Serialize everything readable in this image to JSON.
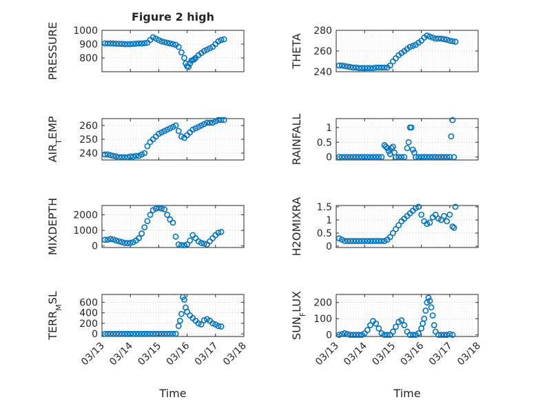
{
  "figure_title": "Figure 2 high",
  "marker_color": "#0072BD",
  "chart_data": [
    {
      "type": "scatter",
      "ylabel": "PRESSURE",
      "title": "Figure 2 high",
      "xlim": [
        0,
        5
      ],
      "ylim": [
        700,
        1000
      ],
      "yticks": [
        800,
        900,
        1000
      ],
      "x": [
        0.1,
        0.2,
        0.3,
        0.4,
        0.5,
        0.6,
        0.7,
        0.8,
        0.9,
        1.0,
        1.1,
        1.2,
        1.3,
        1.4,
        1.5,
        1.6,
        1.7,
        1.8,
        1.9,
        2.0,
        2.1,
        2.2,
        2.3,
        2.4,
        2.5,
        2.6,
        2.7,
        2.8,
        2.9,
        2.95,
        3.0,
        3.05,
        3.1,
        3.15,
        3.2,
        3.25,
        3.3,
        3.4,
        3.5,
        3.6,
        3.7,
        3.8,
        3.9,
        4.0,
        4.1,
        4.2,
        4.3
      ],
      "y": [
        905,
        905,
        905,
        904,
        903,
        902,
        902,
        900,
        900,
        900,
        902,
        903,
        905,
        905,
        907,
        910,
        930,
        950,
        940,
        930,
        920,
        915,
        910,
        905,
        900,
        895,
        880,
        840,
        800,
        760,
        740,
        735,
        760,
        780,
        785,
        790,
        800,
        820,
        835,
        850,
        860,
        870,
        880,
        900,
        920,
        930,
        935
      ]
    },
    {
      "type": "scatter",
      "ylabel": "THETA",
      "xlim": [
        0,
        5
      ],
      "ylim": [
        240,
        280
      ],
      "yticks": [
        240,
        260,
        280
      ],
      "x": [
        0.1,
        0.2,
        0.3,
        0.4,
        0.5,
        0.6,
        0.7,
        0.8,
        0.9,
        1.0,
        1.1,
        1.2,
        1.3,
        1.4,
        1.5,
        1.6,
        1.7,
        1.8,
        1.9,
        2.0,
        2.1,
        2.2,
        2.3,
        2.4,
        2.5,
        2.6,
        2.7,
        2.8,
        2.9,
        3.0,
        3.1,
        3.2,
        3.3,
        3.4,
        3.5,
        3.6,
        3.7,
        3.8,
        3.9,
        4.0,
        4.1,
        4.2
      ],
      "y": [
        246,
        246,
        245.5,
        245,
        244.5,
        244,
        244,
        243.5,
        243.5,
        243.5,
        243.5,
        243.5,
        243.5,
        244,
        244,
        244,
        244,
        244,
        246,
        250,
        253,
        256,
        258,
        260,
        262,
        264,
        265,
        266,
        268,
        270,
        273,
        275,
        274,
        273,
        272,
        272,
        272,
        271.5,
        271,
        270,
        269.5,
        269
      ]
    },
    {
      "type": "scatter",
      "ylabel": "AIR_TEMP",
      "xlim": [
        0,
        5
      ],
      "ylim": [
        235,
        265
      ],
      "yticks": [
        240,
        250,
        260
      ],
      "x": [
        0.1,
        0.2,
        0.3,
        0.4,
        0.5,
        0.6,
        0.7,
        0.8,
        0.9,
        1.0,
        1.1,
        1.2,
        1.3,
        1.4,
        1.5,
        1.6,
        1.7,
        1.8,
        1.9,
        2.0,
        2.1,
        2.2,
        2.3,
        2.4,
        2.5,
        2.6,
        2.7,
        2.8,
        2.9,
        3.0,
        3.1,
        3.2,
        3.3,
        3.4,
        3.5,
        3.6,
        3.7,
        3.8,
        3.9,
        4.0,
        4.1,
        4.2,
        4.3
      ],
      "y": [
        239,
        239,
        238.5,
        238,
        237.5,
        237,
        237,
        237,
        237,
        237.5,
        237.5,
        238,
        238,
        239,
        240,
        245,
        248,
        250,
        252,
        254,
        255,
        256,
        257,
        258,
        259,
        260,
        256,
        252,
        251,
        253,
        255,
        257,
        258,
        259,
        260,
        261,
        262,
        262,
        262,
        263,
        264,
        264,
        264
      ]
    },
    {
      "type": "scatter",
      "ylabel": "RAINFALL",
      "xlim": [
        0,
        5
      ],
      "ylim": [
        -0.1,
        1.3
      ],
      "yticks": [
        0,
        0.5,
        1
      ],
      "x": [
        0.1,
        0.2,
        0.3,
        0.4,
        0.5,
        0.6,
        0.7,
        0.8,
        0.9,
        1.0,
        1.1,
        1.2,
        1.3,
        1.4,
        1.5,
        1.6,
        1.7,
        1.75,
        1.8,
        1.85,
        1.9,
        1.95,
        2.0,
        2.05,
        2.1,
        2.2,
        2.3,
        2.4,
        2.5,
        2.55,
        2.6,
        2.65,
        2.7,
        2.75,
        2.8,
        2.9,
        3.0,
        3.1,
        3.2,
        3.3,
        3.4,
        3.5,
        3.6,
        3.7,
        3.8,
        3.9,
        4.0,
        4.05,
        4.1,
        4.15
      ],
      "y": [
        0,
        0,
        0,
        0,
        0,
        0,
        0,
        0,
        0,
        0,
        0,
        0,
        0,
        0,
        0,
        0,
        0.4,
        0.35,
        0.3,
        0.2,
        0.1,
        0.3,
        0.35,
        0.15,
        0,
        0,
        0,
        0,
        0.3,
        0.5,
        1.0,
        1.0,
        0.25,
        0.15,
        0,
        0,
        0,
        0,
        0,
        0,
        0,
        0,
        0,
        0,
        0,
        0,
        0,
        0.7,
        1.25,
        0
      ]
    },
    {
      "type": "scatter",
      "ylabel": "MIXDEPTH",
      "xlim": [
        0,
        5
      ],
      "ylim": [
        -100,
        2600
      ],
      "yticks": [
        0,
        1000,
        2000
      ],
      "x": [
        0.1,
        0.2,
        0.3,
        0.4,
        0.5,
        0.6,
        0.7,
        0.8,
        0.9,
        1.0,
        1.1,
        1.2,
        1.3,
        1.4,
        1.5,
        1.6,
        1.7,
        1.8,
        1.9,
        2.0,
        2.1,
        2.2,
        2.3,
        2.4,
        2.5,
        2.6,
        2.7,
        2.8,
        2.9,
        3.0,
        3.1,
        3.2,
        3.3,
        3.4,
        3.5,
        3.6,
        3.7,
        3.8,
        3.9,
        4.0,
        4.1,
        4.2
      ],
      "y": [
        400,
        400,
        450,
        420,
        350,
        300,
        250,
        200,
        180,
        200,
        250,
        350,
        500,
        800,
        1200,
        1600,
        2000,
        2300,
        2400,
        2450,
        2400,
        2350,
        2000,
        1700,
        1500,
        600,
        100,
        50,
        50,
        100,
        350,
        700,
        500,
        300,
        200,
        150,
        100,
        300,
        500,
        700,
        850,
        900
      ]
    },
    {
      "type": "scatter",
      "ylabel": "H2OMIXRA",
      "xlim": [
        0,
        5
      ],
      "ylim": [
        -0.05,
        1.55
      ],
      "yticks": [
        0,
        0.5,
        1,
        1.5
      ],
      "x": [
        0.1,
        0.2,
        0.3,
        0.4,
        0.5,
        0.6,
        0.7,
        0.8,
        0.9,
        1.0,
        1.1,
        1.2,
        1.3,
        1.4,
        1.5,
        1.6,
        1.7,
        1.8,
        1.9,
        2.0,
        2.1,
        2.2,
        2.3,
        2.4,
        2.5,
        2.6,
        2.7,
        2.8,
        2.9,
        3.0,
        3.1,
        3.2,
        3.3,
        3.4,
        3.5,
        3.6,
        3.7,
        3.8,
        3.9,
        4.0,
        4.1,
        4.15,
        4.2
      ],
      "y": [
        0.3,
        0.25,
        0.2,
        0.2,
        0.2,
        0.2,
        0.2,
        0.2,
        0.2,
        0.2,
        0.2,
        0.2,
        0.2,
        0.2,
        0.2,
        0.2,
        0.2,
        0.25,
        0.35,
        0.5,
        0.65,
        0.8,
        0.95,
        1.05,
        1.15,
        1.25,
        1.35,
        1.45,
        1.5,
        1.2,
        0.95,
        0.85,
        0.9,
        1.1,
        1.2,
        1.05,
        1.0,
        1.15,
        0.95,
        1.2,
        0.75,
        0.7,
        1.5
      ]
    },
    {
      "type": "scatter",
      "ylabel": "TERR_MSL",
      "xlim": [
        0,
        5
      ],
      "ylim": [
        -50,
        750
      ],
      "yticks": [
        0,
        200,
        400,
        600
      ],
      "x": [
        0.1,
        0.2,
        0.3,
        0.4,
        0.5,
        0.6,
        0.7,
        0.8,
        0.9,
        1.0,
        1.1,
        1.2,
        1.3,
        1.4,
        1.5,
        1.6,
        1.7,
        1.8,
        1.9,
        2.0,
        2.1,
        2.2,
        2.3,
        2.4,
        2.5,
        2.6,
        2.7,
        2.75,
        2.8,
        2.85,
        2.9,
        2.95,
        3.0,
        3.1,
        3.2,
        3.3,
        3.4,
        3.5,
        3.6,
        3.7,
        3.8,
        3.9,
        4.0,
        4.1,
        4.2
      ],
      "y": [
        0,
        0,
        0,
        0,
        0,
        0,
        0,
        0,
        0,
        0,
        0,
        0,
        0,
        0,
        0,
        0,
        0,
        0,
        0,
        0,
        0,
        0,
        0,
        0,
        0,
        0,
        150,
        250,
        380,
        700,
        650,
        500,
        420,
        350,
        300,
        250,
        200,
        180,
        260,
        280,
        250,
        200,
        180,
        150,
        140
      ]
    },
    {
      "type": "scatter",
      "ylabel": "SUN_FLUX",
      "xlim": [
        0,
        5
      ],
      "ylim": [
        -10,
        250
      ],
      "yticks": [
        0,
        100,
        200
      ],
      "x": [
        0.1,
        0.2,
        0.3,
        0.4,
        0.5,
        0.6,
        0.7,
        0.8,
        0.9,
        1.0,
        1.1,
        1.2,
        1.3,
        1.4,
        1.5,
        1.6,
        1.7,
        1.8,
        1.9,
        2.0,
        2.1,
        2.2,
        2.3,
        2.4,
        2.5,
        2.6,
        2.7,
        2.8,
        2.9,
        3.0,
        3.05,
        3.1,
        3.15,
        3.2,
        3.25,
        3.3,
        3.35,
        3.4,
        3.45,
        3.5,
        3.6,
        3.7,
        3.8,
        3.9,
        4.0,
        4.1
      ],
      "y": [
        0,
        5,
        10,
        5,
        0,
        0,
        0,
        0,
        0,
        10,
        30,
        60,
        85,
        70,
        40,
        10,
        0,
        0,
        0,
        20,
        50,
        80,
        90,
        60,
        20,
        0,
        0,
        0,
        10,
        40,
        70,
        100,
        150,
        200,
        230,
        210,
        170,
        120,
        60,
        20,
        0,
        0,
        0,
        0,
        5,
        0
      ]
    }
  ],
  "xticks": [
    "03/13",
    "03/14",
    "03/15",
    "03/16",
    "03/17",
    "03/18"
  ],
  "xlabel": "Time"
}
